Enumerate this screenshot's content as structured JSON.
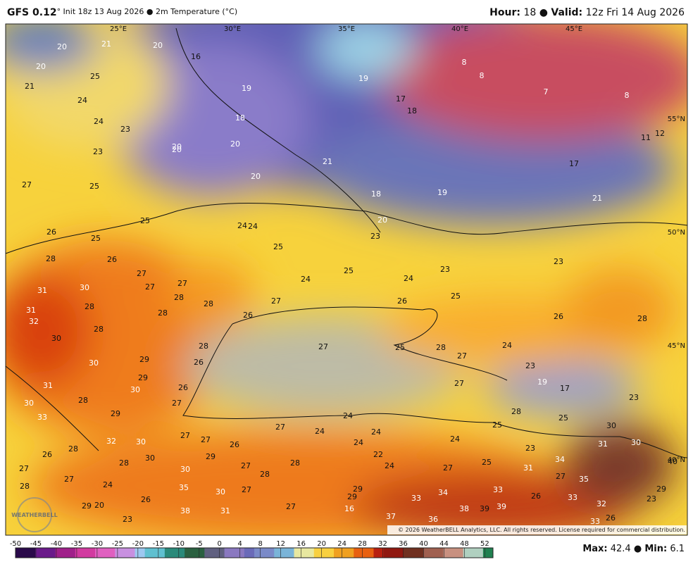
{
  "header": {
    "model": "GFS 0.12",
    "rest": "° Init 18z 13 Aug 2026 ● 2m Temperature (°C)",
    "hour_label": "Hour:",
    "hour": "18 ●",
    "valid_label": "Valid:",
    "valid": "12z Fri 14 Aug 2026"
  },
  "map": {
    "lon_labels": [
      "25°E",
      "30°E",
      "35°E",
      "40°E",
      "45°E"
    ],
    "lat_labels": [
      "55°N",
      "50°N",
      "45°N",
      "40°N"
    ],
    "point_labels": [
      20,
      21,
      20,
      16,
      20,
      25,
      21,
      19,
      19,
      8,
      8,
      7,
      8,
      24,
      17,
      18,
      18,
      24,
      23,
      12,
      11,
      20,
      20,
      20,
      23,
      21,
      17,
      20,
      27,
      25,
      18,
      19,
      21,
      25,
      24,
      24,
      20,
      26,
      25,
      23,
      25,
      28,
      26,
      25,
      23,
      23,
      27,
      24,
      24,
      31,
      30,
      27,
      27,
      28,
      28,
      27,
      25,
      26,
      31,
      28,
      28,
      26,
      26,
      28,
      32,
      28,
      30,
      28,
      27,
      25,
      28,
      24,
      27,
      30,
      29,
      26,
      23,
      29,
      27,
      19,
      17,
      31,
      30,
      26,
      23,
      30,
      28,
      27,
      28,
      33,
      29,
      24,
      25,
      25,
      30,
      32,
      30,
      27,
      24,
      24,
      27,
      27,
      26,
      24,
      24,
      31,
      30,
      28,
      26,
      29,
      22,
      23,
      30,
      28,
      27,
      28,
      24,
      27,
      25,
      34,
      31,
      40,
      27,
      30,
      28,
      27,
      27,
      35,
      24,
      28,
      35,
      27,
      30,
      29,
      34,
      33,
      29,
      29,
      33,
      33,
      26,
      23,
      26,
      29,
      20,
      27,
      16,
      38,
      31,
      38,
      39,
      39,
      32,
      26,
      37,
      36,
      33,
      23
    ],
    "copyright": "© 2026 WeatherBELL Analytics, LLC. All rights reserved. License required for commercial distribution.",
    "logo": "WEATHERBELL"
  },
  "colorbar": {
    "ticks": [
      -50,
      -45,
      -40,
      -35,
      -30,
      -25,
      -20,
      -15,
      -10,
      -5,
      0,
      4,
      8,
      12,
      16,
      20,
      24,
      28,
      32,
      36,
      40,
      44,
      48,
      52
    ]
  },
  "footer": {
    "max_label": "Max:",
    "max": "42.4 ●",
    "min_label": "Min:",
    "min": "6.1"
  }
}
